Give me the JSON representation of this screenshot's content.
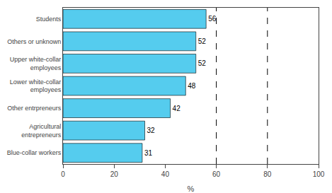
{
  "chart_data": {
    "type": "bar",
    "orientation": "horizontal",
    "categories": [
      "Blue-collar workers",
      "Agricultural\nentrepreneurs",
      "Other entrpreneurs",
      "Lower white-collar\nemployees",
      "Upper white-collar\nemployees",
      "Others or unknown",
      "Students"
    ],
    "values": [
      31,
      32,
      42,
      48,
      52,
      52,
      56
    ],
    "color": "#55ccee",
    "xlabel": "%",
    "xlim": [
      0,
      100
    ],
    "xticks": [
      0,
      20,
      40,
      60,
      80,
      100
    ],
    "vlines": [
      60,
      80
    ],
    "data_labels": true,
    "grid": false
  }
}
